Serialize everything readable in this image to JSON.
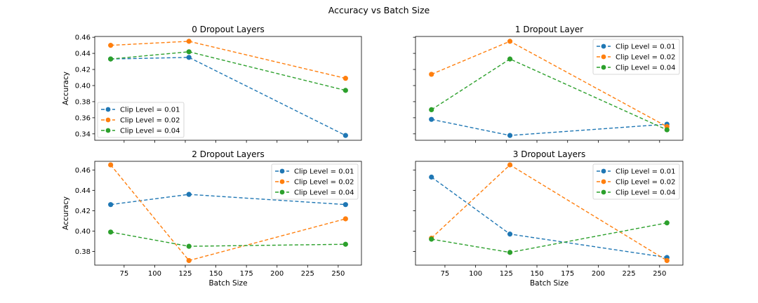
{
  "figure": {
    "suptitle": "Accuracy vs Batch Size"
  },
  "colors": {
    "clip_001": "#1f77b4",
    "clip_002": "#ff7f0e",
    "clip_004": "#2ca02c"
  },
  "chart_data": [
    {
      "type": "line",
      "title": "0 Dropout Layers",
      "xlabel": "",
      "ylabel": "Accuracy",
      "x": [
        64,
        128,
        256
      ],
      "xlim": [
        51,
        269
      ],
      "ylim": [
        0.332,
        0.461
      ],
      "xticks": [
        75,
        100,
        125,
        150,
        175,
        200,
        225,
        250
      ],
      "xtick_labels_visible": false,
      "yticks": [
        0.34,
        0.36,
        0.38,
        0.4,
        0.42,
        0.44,
        0.46
      ],
      "ytick_labels": [
        "0.34",
        "0.36",
        "0.38",
        "0.40",
        "0.42",
        "0.44",
        "0.46"
      ],
      "legend_position": "lower-left",
      "series": [
        {
          "name": "Clip Level = 0.01",
          "color": "#1f77b4",
          "values": [
            0.433,
            0.435,
            0.338
          ]
        },
        {
          "name": "Clip Level = 0.02",
          "color": "#ff7f0e",
          "values": [
            0.45,
            0.455,
            0.409
          ]
        },
        {
          "name": "Clip Level = 0.04",
          "color": "#2ca02c",
          "values": [
            0.433,
            0.442,
            0.394
          ]
        }
      ]
    },
    {
      "type": "line",
      "title": "1 Dropout Layer",
      "xlabel": "",
      "ylabel": "",
      "x": [
        64,
        128,
        256
      ],
      "xlim": [
        51,
        269
      ],
      "ylim": [
        0.332,
        0.461
      ],
      "xticks": [
        75,
        100,
        125,
        150,
        175,
        200,
        225,
        250
      ],
      "xtick_labels_visible": false,
      "yticks": [
        0.34,
        0.36,
        0.38,
        0.4,
        0.42,
        0.44,
        0.46
      ],
      "ytick_labels": [],
      "legend_position": "upper-right",
      "series": [
        {
          "name": "Clip Level = 0.01",
          "color": "#1f77b4",
          "values": [
            0.358,
            0.338,
            0.352
          ]
        },
        {
          "name": "Clip Level = 0.02",
          "color": "#ff7f0e",
          "values": [
            0.414,
            0.455,
            0.349
          ]
        },
        {
          "name": "Clip Level = 0.04",
          "color": "#2ca02c",
          "values": [
            0.37,
            0.433,
            0.345
          ]
        }
      ]
    },
    {
      "type": "line",
      "title": "2 Dropout Layers",
      "xlabel": "Batch Size",
      "ylabel": "Accuracy",
      "x": [
        64,
        128,
        256
      ],
      "xlim": [
        51,
        269
      ],
      "ylim": [
        0.3665,
        0.4685
      ],
      "xticks": [
        75,
        100,
        125,
        150,
        175,
        200,
        225,
        250
      ],
      "xtick_labels_visible": true,
      "xtick_labels": [
        "75",
        "100",
        "125",
        "150",
        "175",
        "200",
        "225",
        "250"
      ],
      "yticks": [
        0.38,
        0.4,
        0.42,
        0.44,
        0.46
      ],
      "ytick_labels": [
        "0.38",
        "0.40",
        "0.42",
        "0.44",
        "0.46"
      ],
      "legend_position": "upper-right",
      "series": [
        {
          "name": "Clip Level = 0.01",
          "color": "#1f77b4",
          "values": [
            0.426,
            0.436,
            0.426
          ]
        },
        {
          "name": "Clip Level = 0.02",
          "color": "#ff7f0e",
          "values": [
            0.465,
            0.371,
            0.412
          ]
        },
        {
          "name": "Clip Level = 0.04",
          "color": "#2ca02c",
          "values": [
            0.399,
            0.385,
            0.387
          ]
        }
      ]
    },
    {
      "type": "line",
      "title": "3 Dropout Layers",
      "xlabel": "Batch Size",
      "ylabel": "",
      "x": [
        64,
        128,
        256
      ],
      "xlim": [
        51,
        269
      ],
      "ylim": [
        0.3665,
        0.4685
      ],
      "xticks": [
        75,
        100,
        125,
        150,
        175,
        200,
        225,
        250
      ],
      "xtick_labels_visible": true,
      "xtick_labels": [
        "75",
        "100",
        "125",
        "150",
        "175",
        "200",
        "225",
        "250"
      ],
      "yticks": [
        0.38,
        0.4,
        0.42,
        0.44,
        0.46
      ],
      "ytick_labels": [],
      "legend_position": "upper-right",
      "series": [
        {
          "name": "Clip Level = 0.01",
          "color": "#1f77b4",
          "values": [
            0.453,
            0.397,
            0.374
          ]
        },
        {
          "name": "Clip Level = 0.02",
          "color": "#ff7f0e",
          "values": [
            0.393,
            0.465,
            0.371
          ]
        },
        {
          "name": "Clip Level = 0.04",
          "color": "#2ca02c",
          "values": [
            0.392,
            0.379,
            0.408
          ]
        }
      ]
    }
  ]
}
